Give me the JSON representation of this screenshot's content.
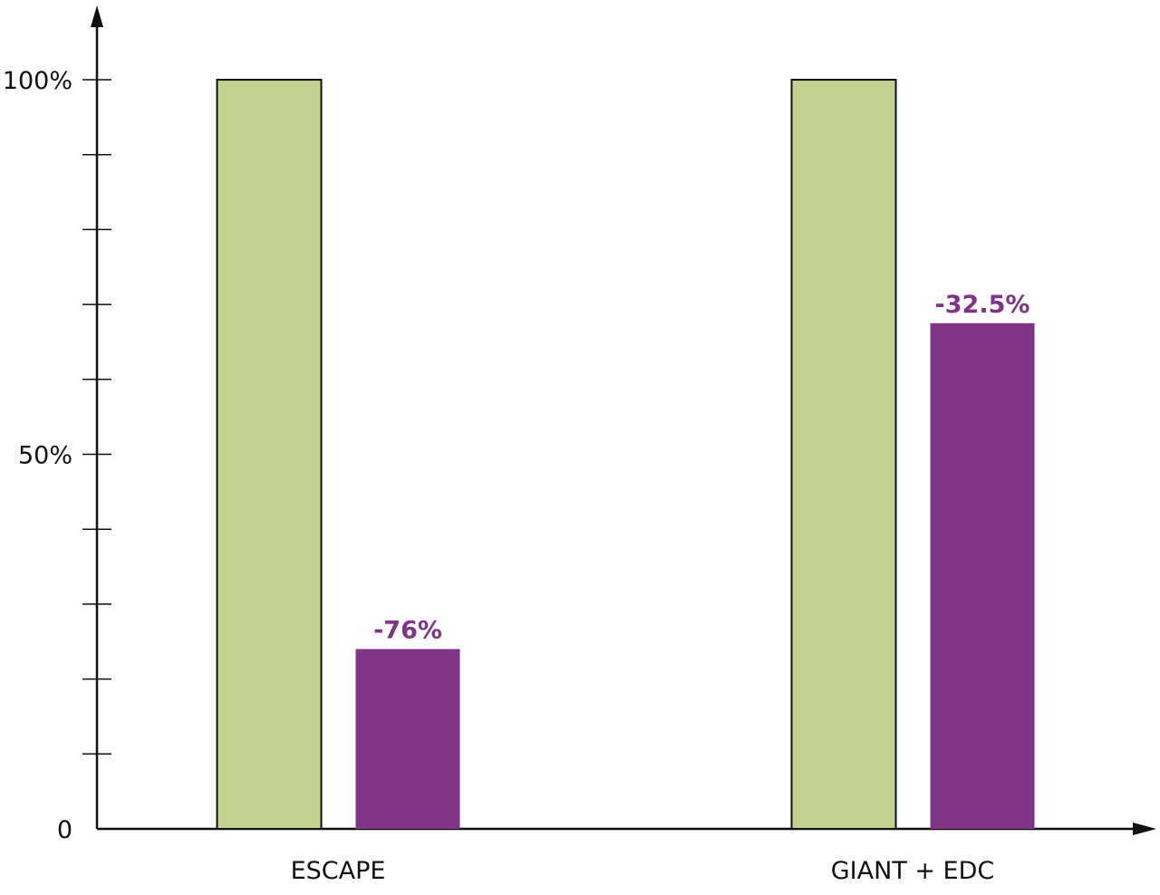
{
  "chart_data": {
    "type": "bar",
    "title": "",
    "xlabel": "",
    "ylabel": "",
    "categories": [
      "ESCAPE",
      "GIANT + EDC"
    ],
    "series": [
      {
        "values": [
          100,
          100
        ],
        "color": "#c2d190"
      },
      {
        "values": [
          24,
          67.5
        ],
        "color": "#7f3486"
      }
    ],
    "data_labels": [
      "-76%",
      "-32.5%"
    ],
    "ylim": [
      0,
      100
    ],
    "y_tick_labels": [
      {
        "value": 0,
        "label": "0"
      },
      {
        "value": 50,
        "label": "50%"
      },
      {
        "value": 100,
        "label": "100%"
      }
    ],
    "minor_tick_step": 10,
    "axis_arrows": true,
    "grid": false,
    "colors": {
      "baseline_bar": "#c2d190",
      "reduced_bar": "#7f3486",
      "axis": "#111111"
    }
  }
}
